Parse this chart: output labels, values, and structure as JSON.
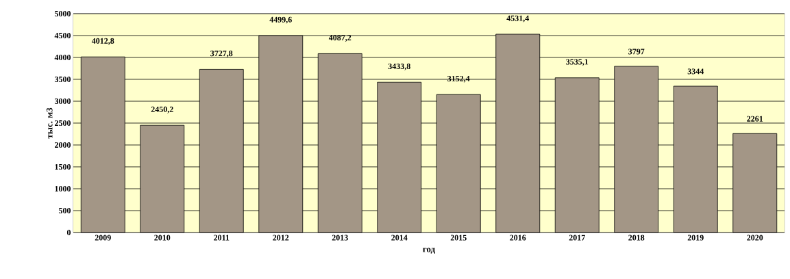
{
  "chart_data": {
    "type": "bar",
    "xlabel": "год",
    "ylabel": "тыс. м3",
    "categories": [
      "2009",
      "2010",
      "2011",
      "2012",
      "2013",
      "2014",
      "2015",
      "2016",
      "2017",
      "2018",
      "2019",
      "2020"
    ],
    "values": [
      4012.8,
      2450.2,
      3727.8,
      4499.6,
      4087.2,
      3433.8,
      3152.4,
      4531.4,
      3535.1,
      3797,
      3344,
      2261
    ],
    "value_labels": [
      "4012,8",
      "2450,2",
      "3727,8",
      "4499,6",
      "4087,2",
      "3433,8",
      "3152,4",
      "4531,4",
      "3535,1",
      "3797",
      "3344",
      "2261"
    ],
    "color": "#a39686",
    "bands": [
      {
        "axis": "y",
        "from": 0,
        "to": 5000,
        "color": "#ffffcc"
      }
    ],
    "ylim": [
      0,
      5000
    ],
    "yticks": [
      0,
      500,
      1000,
      1500,
      2000,
      2500,
      3000,
      3500,
      4000,
      4500,
      5000
    ],
    "grid": "y"
  }
}
